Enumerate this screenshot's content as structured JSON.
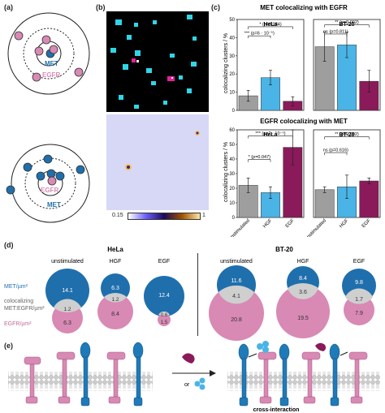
{
  "panels": {
    "a": "(a)",
    "b": "(b)",
    "c": "(c)",
    "d": "(d)",
    "e": "(e)"
  },
  "panel_a": {
    "top": {
      "inner_label": "MET",
      "outer_label": "EGFR"
    },
    "bottom": {
      "inner_label": "EGFR",
      "outer_label": "MET"
    }
  },
  "panel_b": {
    "scale_min": "0.15",
    "scale_max": "1"
  },
  "panel_c": {
    "top_title": "MET colocalizing with EGFR",
    "bottom_title": "EGFR colocalizing with MET",
    "ylabel": "colocalizing clusters / %",
    "x_categories": [
      "unstimulated",
      "HGF",
      "EGF"
    ]
  },
  "chart_data": [
    {
      "type": "bar",
      "title": "MET colocalizing with EGFR",
      "subplot": "HeLa",
      "ylabel": "colocalizing clusters / %",
      "categories": [
        "unstimulated",
        "HGF",
        "EGF"
      ],
      "values": [
        8,
        18,
        5
      ],
      "errors": [
        3,
        4,
        2.5
      ],
      "ylim": [
        0,
        50
      ],
      "yticks": [
        0,
        10,
        20,
        30,
        40,
        50
      ],
      "colors": [
        "#9e9e9e",
        "#4ab4e6",
        "#8b1a5a"
      ],
      "annotations": [
        "* (p=0.034)",
        "*** (p=6 · 10⁻⁵)"
      ]
    },
    {
      "type": "bar",
      "title": "MET colocalizing with EGFR",
      "subplot": "BT-20",
      "categories": [
        "unstimulated",
        "HGF",
        "EGF"
      ],
      "values": [
        35,
        36,
        16
      ],
      "errors": [
        8,
        7,
        6
      ],
      "ylim": [
        0,
        50
      ],
      "colors": [
        "#9e9e9e",
        "#4ab4e6",
        "#8b1a5a"
      ],
      "annotations": [
        "** (p=0.002)",
        "ns (p=0.811)"
      ]
    },
    {
      "type": "bar",
      "title": "EGFR colocalizing with MET",
      "subplot": "HeLa",
      "ylabel": "colocalizing clusters / %",
      "categories": [
        "unstimulated",
        "HGF",
        "EGF"
      ],
      "values": [
        22,
        17,
        48
      ],
      "errors": [
        5,
        4,
        12
      ],
      "ylim": [
        0,
        60
      ],
      "yticks": [
        0,
        10,
        20,
        30,
        40,
        50,
        60
      ],
      "colors": [
        "#9e9e9e",
        "#4ab4e6",
        "#8b1a5a"
      ],
      "annotations": [
        "*** (p=2 · 10⁻⁵)",
        "* (p=0.047)"
      ]
    },
    {
      "type": "bar",
      "title": "EGFR colocalizing with MET",
      "subplot": "BT-20",
      "categories": [
        "unstimulated",
        "HGF",
        "EGF"
      ],
      "values": [
        19,
        21,
        25
      ],
      "errors": [
        2,
        8,
        2
      ],
      "ylim": [
        0,
        60
      ],
      "colors": [
        "#9e9e9e",
        "#4ab4e6",
        "#8b1a5a"
      ],
      "annotations": [
        "** (p=0.002)",
        "ns (p=0.616)"
      ]
    }
  ],
  "panel_d": {
    "legend": {
      "met": "MET/µm²",
      "coloc_line1": "colocalizing",
      "coloc_line2": "MET:EGFR/µm²",
      "egfr": "EGFR/µm²"
    },
    "groups": [
      {
        "cell": "HeLa",
        "conditions": [
          {
            "name": "unstimulated",
            "met": "14.1",
            "coloc": "1.2",
            "egfr": "6.3"
          },
          {
            "name": "HGF",
            "met": "6.3",
            "coloc": "1.2",
            "egfr": "8.4"
          },
          {
            "name": "EGF",
            "met": "12.4",
            "coloc": "0.6",
            "egfr": "1.5"
          }
        ]
      },
      {
        "cell": "BT-20",
        "conditions": [
          {
            "name": "unstimulated",
            "met": "11.6",
            "coloc": "4.1",
            "egfr": "20.8"
          },
          {
            "name": "HGF",
            "met": "8.4",
            "coloc": "3.6",
            "egfr": "19.5"
          },
          {
            "name": "EGF",
            "met": "9.8",
            "coloc": "1.7",
            "egfr": "7.9"
          }
        ]
      }
    ]
  },
  "panel_e": {
    "or_label": "or",
    "cross_label": "cross-interaction"
  },
  "colors": {
    "met": "#1f6fad",
    "egfr": "#d889b4",
    "coloc": "#cfcfcf",
    "dark_magenta": "#8b1a5a",
    "light_blue": "#4ab4e6",
    "gray": "#9e9e9e"
  }
}
